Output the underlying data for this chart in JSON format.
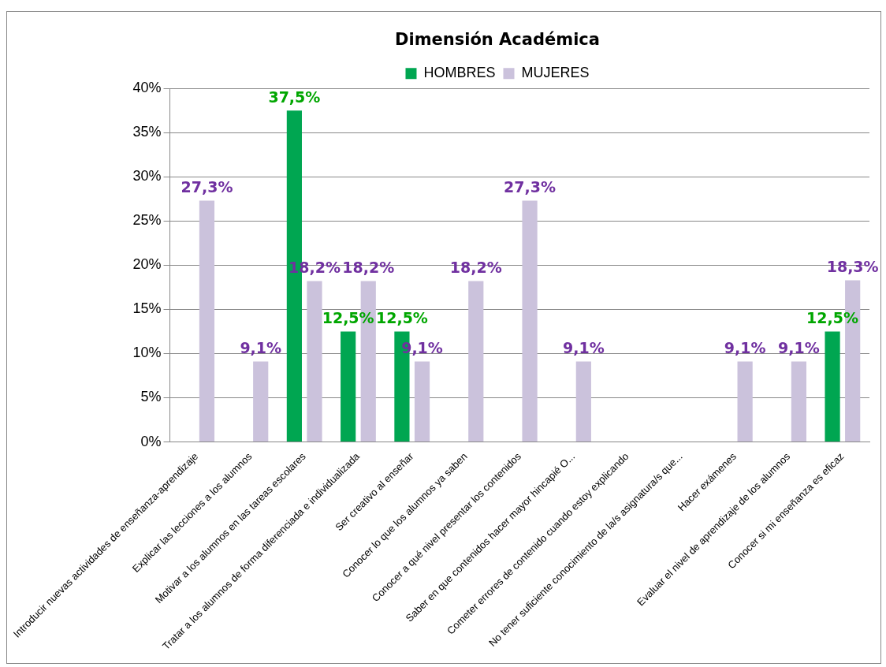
{
  "chart_data": {
    "type": "bar",
    "title": "Dimensión Académica",
    "categories": [
      "Introducir nuevas actividades de enseñanza-aprendizaje",
      "Explicar las lecciones a los alumnos",
      "Motivar a los alumnos en las tareas escolares",
      "Tratar a los alumnos de forma diferenciada e individualizada",
      "Ser creativo al enseñar",
      "Conocer lo que los alumnos ya saben",
      "Conocer a qué nivel presentar los contenidos",
      "Saber en que contenidos hacer mayor hincapié O...",
      "Cometer errores de contenido cuando estoy explicando",
      "No tener suficiente conocimiento de la/s asignatura/s que...",
      "Hacer exámenes",
      "Evaluar el nivel de aprendizaje de los alumnos",
      "Conocer si mi enseñanza es eficaz"
    ],
    "series": [
      {
        "name": "HOMBRES",
        "color": "#00a651",
        "values": [
          null,
          null,
          37.5,
          12.5,
          12.5,
          null,
          null,
          null,
          null,
          null,
          null,
          null,
          12.5
        ],
        "value_labels": [
          null,
          null,
          "37,5%",
          "12,5%",
          "12,5%",
          null,
          null,
          null,
          null,
          null,
          null,
          null,
          "12,5%"
        ]
      },
      {
        "name": "MUJERES",
        "color": "#cbc2dc",
        "values": [
          27.3,
          9.1,
          18.2,
          18.2,
          9.1,
          18.2,
          27.3,
          9.1,
          null,
          null,
          9.1,
          9.1,
          18.3
        ],
        "value_labels": [
          "27,3%",
          "9,1%",
          "18,2%",
          "18,2%",
          "9,1%",
          "18,2%",
          "27,3%",
          "9,1%",
          null,
          null,
          "9,1%",
          "9,1%",
          "18,3%"
        ]
      }
    ],
    "ylim": [
      0,
      40
    ],
    "yticks": [
      {
        "value": 0,
        "label": "0%"
      },
      {
        "value": 5,
        "label": "5%"
      },
      {
        "value": 10,
        "label": "10%"
      },
      {
        "value": 15,
        "label": "15%"
      },
      {
        "value": 20,
        "label": "20%"
      },
      {
        "value": 25,
        "label": "25%"
      },
      {
        "value": 30,
        "label": "30%"
      },
      {
        "value": 35,
        "label": "35%"
      },
      {
        "value": 40,
        "label": "40%"
      }
    ],
    "grid": "y",
    "legend": "top"
  }
}
